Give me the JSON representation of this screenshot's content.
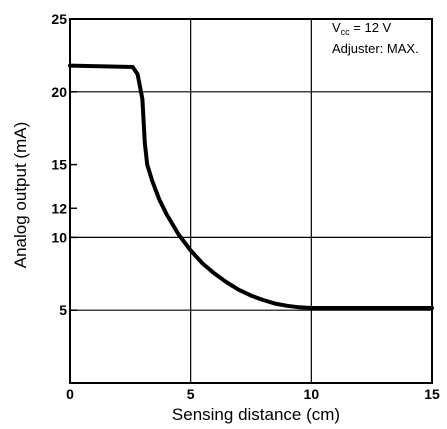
{
  "chart_data": {
    "type": "line",
    "title": "",
    "xlabel": "Sensing distance (cm)",
    "ylabel": "Analog output (mA)",
    "xlim": [
      0,
      15
    ],
    "ylim": [
      0,
      25
    ],
    "grid": true,
    "x_ticks": [
      {
        "value": 0,
        "label": "0"
      },
      {
        "value": 5,
        "label": "5"
      },
      {
        "value": 10,
        "label": "10"
      },
      {
        "value": 15,
        "label": "15"
      }
    ],
    "y_ticks": [
      {
        "value": 5,
        "label": "5"
      },
      {
        "value": 10,
        "label": "10"
      },
      {
        "value": 12,
        "label": "12"
      },
      {
        "value": 15,
        "label": "15"
      },
      {
        "value": 20,
        "label": "20"
      },
      {
        "value": 25,
        "label": "25"
      }
    ],
    "y_gridlines": [
      5,
      10,
      20,
      25
    ],
    "x_gridlines": [
      5,
      10,
      15
    ],
    "annotation": {
      "vcc_main": "V",
      "vcc_sub": "cc",
      "vcc_rest": " = 12 V",
      "adjuster": "Adjuster: MAX."
    },
    "series": [
      {
        "x": [
          0,
          2.6,
          2.8,
          3.0,
          3.1,
          3.2,
          3.4,
          3.7,
          4.0,
          4.5,
          5.0,
          5.5,
          6.0,
          6.5,
          7.0,
          7.5,
          8.0,
          8.5,
          9.0,
          9.5,
          10.0,
          15.0
        ],
        "y": [
          21.8,
          21.7,
          21.2,
          19.5,
          16.5,
          15.0,
          13.9,
          12.6,
          11.6,
          10.2,
          9.1,
          8.2,
          7.5,
          6.9,
          6.4,
          6.0,
          5.7,
          5.45,
          5.3,
          5.2,
          5.15,
          5.15
        ]
      }
    ]
  }
}
